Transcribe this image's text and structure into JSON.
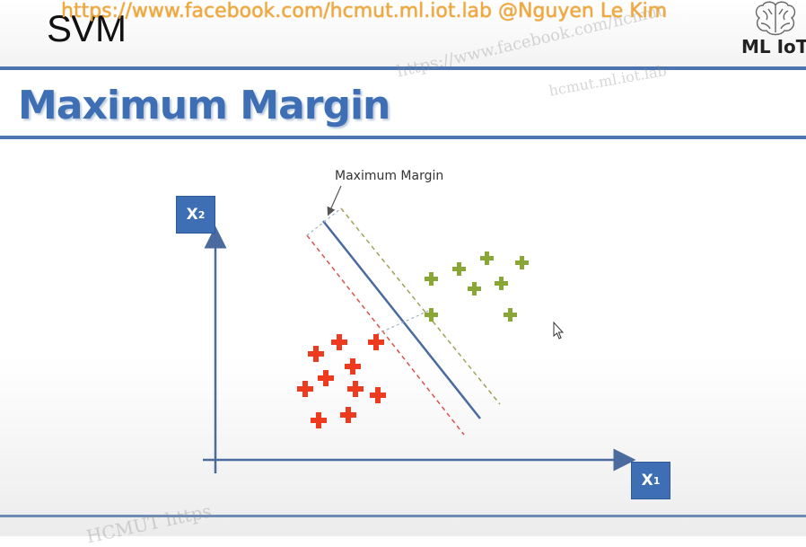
{
  "header": {
    "title": "SVM",
    "banner": "https://www.facebook.com/hcmut.ml.iot.lab @Nguyen Le Kim",
    "logo_text": "ML IoT"
  },
  "slide": {
    "title": "Maximum Margin",
    "callout_label": "Maximum Margin",
    "x1_axis": {
      "letter": "X",
      "subscript": "1"
    },
    "x2_axis": {
      "letter": "X",
      "subscript": "2"
    }
  },
  "watermarks": {
    "wm1": "https://www.facebook.com/hcmut",
    "wm2": "hcmut.ml.iot.lab",
    "wm3": "HCMUT https"
  },
  "colors": {
    "accent": "#3e6fb4",
    "class_red": "#ee3b1f",
    "class_green": "#8aa636",
    "hyperplane": "#4a6aa0",
    "margin_red": "#d9534f",
    "margin_green": "#a3a05a",
    "banner": "#f2a93a"
  },
  "icons": {
    "logo": "brain-icon",
    "cursor": "mouse-pointer-icon",
    "point_marker": "plus-icon"
  }
}
